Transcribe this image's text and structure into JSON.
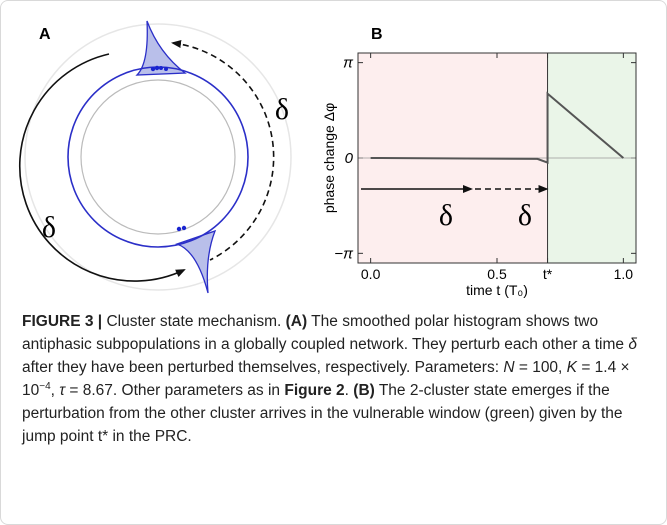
{
  "panel_a": {
    "label": "A",
    "delta_right": "δ",
    "delta_left": "δ"
  },
  "panel_b": {
    "label": "B",
    "type": "line",
    "y_label": "phase change Δφ",
    "x_label": "time t (T₀)",
    "xlim": [
      -0.05,
      1.05
    ],
    "ylim": [
      -3.46,
      3.46
    ],
    "xticks": [
      {
        "value": 0,
        "label": "0.0"
      },
      0.5,
      {
        "value": 0.7,
        "label": "t*"
      },
      {
        "value": 1,
        "label": "1.0"
      }
    ],
    "yticks": [
      {
        "value": -3.1416,
        "label": "−π"
      },
      0,
      {
        "value": 3.1416,
        "label": "π"
      }
    ],
    "x": [
      0,
      0.66,
      0.7,
      0.7,
      1.0
    ],
    "y": [
      0,
      -0.03,
      -0.15,
      2.12,
      0
    ],
    "color": "#555555",
    "delta_1": "δ",
    "delta_2": "δ"
  },
  "caption": {
    "segments": [
      {
        "text": "FIGURE 3 |",
        "style": "bold"
      },
      {
        "text": " Cluster state mechanism. ",
        "style": "normal"
      },
      {
        "text": "(A)",
        "style": "bold"
      },
      {
        "text": " The smoothed polar histogram shows two antiphasic subpopulations in a globally coupled network. They perturb each other a time ",
        "style": "normal"
      },
      {
        "text": "δ",
        "style": "italic"
      },
      {
        "text": " after they have been perturbed themselves, respectively. Parameters: ",
        "style": "normal"
      },
      {
        "text": "N",
        "style": "italic"
      },
      {
        "text": " = 100, ",
        "style": "normal"
      },
      {
        "text": "K",
        "style": "italic"
      },
      {
        "text": " = 1.4 × 10",
        "style": "normal"
      },
      {
        "text": "−4",
        "style": "sup"
      },
      {
        "text": ", ",
        "style": "normal"
      },
      {
        "text": "τ",
        "style": "italic"
      },
      {
        "text": " = 8.67. Other parameters as in ",
        "style": "normal"
      },
      {
        "text": "Figure 2",
        "style": "bold"
      },
      {
        "text": ". ",
        "style": "normal"
      },
      {
        "text": "(B)",
        "style": "bold"
      },
      {
        "text": " The 2-cluster state emerges if the perturbation from the other cluster arrives in the vulnerable window (green) given by the jump point t* in the PRC.",
        "style": "normal"
      }
    ]
  }
}
